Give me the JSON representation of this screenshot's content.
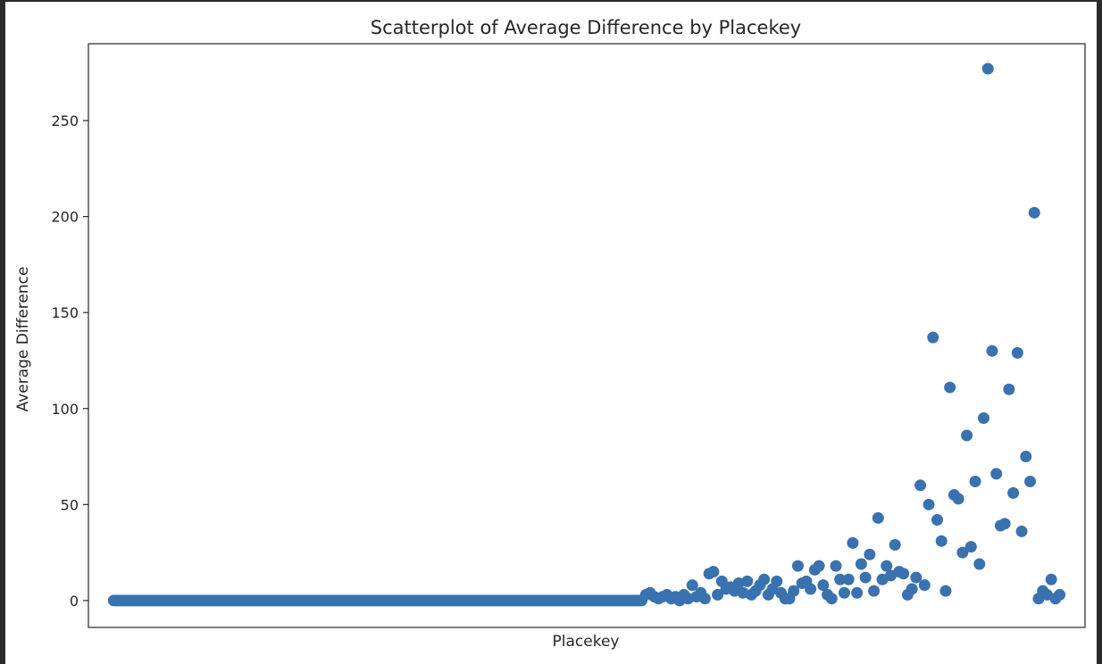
{
  "chart_data": {
    "type": "scatter",
    "title": "Scatterplot of Average Difference by Placekey",
    "xlabel": "Placekey",
    "ylabel": "Average Difference",
    "ylim": [
      -14,
      290
    ],
    "yticks": [
      0,
      50,
      100,
      150,
      200,
      250
    ],
    "xticks_visible": false,
    "grid": false,
    "marker_color": "#3a72b0",
    "zero_run": {
      "from_index": 0,
      "to_index": 250,
      "y": 0
    },
    "points": [
      [
        252,
        3
      ],
      [
        254,
        4
      ],
      [
        256,
        2
      ],
      [
        258,
        1
      ],
      [
        260,
        2
      ],
      [
        262,
        3
      ],
      [
        264,
        1
      ],
      [
        266,
        2
      ],
      [
        268,
        0
      ],
      [
        270,
        3
      ],
      [
        272,
        1
      ],
      [
        274,
        8
      ],
      [
        276,
        2
      ],
      [
        278,
        4
      ],
      [
        280,
        1
      ],
      [
        282,
        14
      ],
      [
        284,
        15
      ],
      [
        286,
        3
      ],
      [
        288,
        10
      ],
      [
        290,
        6
      ],
      [
        292,
        7
      ],
      [
        294,
        5
      ],
      [
        296,
        9
      ],
      [
        298,
        4
      ],
      [
        300,
        10
      ],
      [
        302,
        3
      ],
      [
        304,
        5
      ],
      [
        306,
        8
      ],
      [
        308,
        11
      ],
      [
        310,
        3
      ],
      [
        312,
        6
      ],
      [
        314,
        10
      ],
      [
        316,
        4
      ],
      [
        318,
        1
      ],
      [
        320,
        1
      ],
      [
        322,
        5
      ],
      [
        324,
        18
      ],
      [
        326,
        9
      ],
      [
        328,
        10
      ],
      [
        330,
        6
      ],
      [
        332,
        16
      ],
      [
        334,
        18
      ],
      [
        336,
        8
      ],
      [
        338,
        3
      ],
      [
        340,
        1
      ],
      [
        342,
        18
      ],
      [
        344,
        11
      ],
      [
        346,
        4
      ],
      [
        348,
        11
      ],
      [
        350,
        30
      ],
      [
        352,
        4
      ],
      [
        354,
        19
      ],
      [
        356,
        12
      ],
      [
        358,
        24
      ],
      [
        360,
        5
      ],
      [
        362,
        43
      ],
      [
        364,
        11
      ],
      [
        366,
        18
      ],
      [
        368,
        13
      ],
      [
        370,
        29
      ],
      [
        372,
        15
      ],
      [
        374,
        14
      ],
      [
        376,
        3
      ],
      [
        378,
        6
      ],
      [
        380,
        12
      ],
      [
        382,
        60
      ],
      [
        384,
        8
      ],
      [
        386,
        50
      ],
      [
        388,
        137
      ],
      [
        390,
        42
      ],
      [
        392,
        31
      ],
      [
        394,
        5
      ],
      [
        396,
        111
      ],
      [
        398,
        55
      ],
      [
        400,
        53
      ],
      [
        402,
        25
      ],
      [
        404,
        86
      ],
      [
        406,
        28
      ],
      [
        408,
        62
      ],
      [
        410,
        19
      ],
      [
        412,
        95
      ],
      [
        414,
        277
      ],
      [
        416,
        130
      ],
      [
        418,
        66
      ],
      [
        420,
        39
      ],
      [
        422,
        40
      ],
      [
        424,
        110
      ],
      [
        426,
        56
      ],
      [
        428,
        129
      ],
      [
        430,
        36
      ],
      [
        432,
        75
      ],
      [
        434,
        62
      ],
      [
        436,
        202
      ],
      [
        438,
        1
      ],
      [
        440,
        5
      ],
      [
        442,
        3
      ],
      [
        444,
        11
      ],
      [
        446,
        1
      ],
      [
        448,
        3
      ]
    ]
  }
}
